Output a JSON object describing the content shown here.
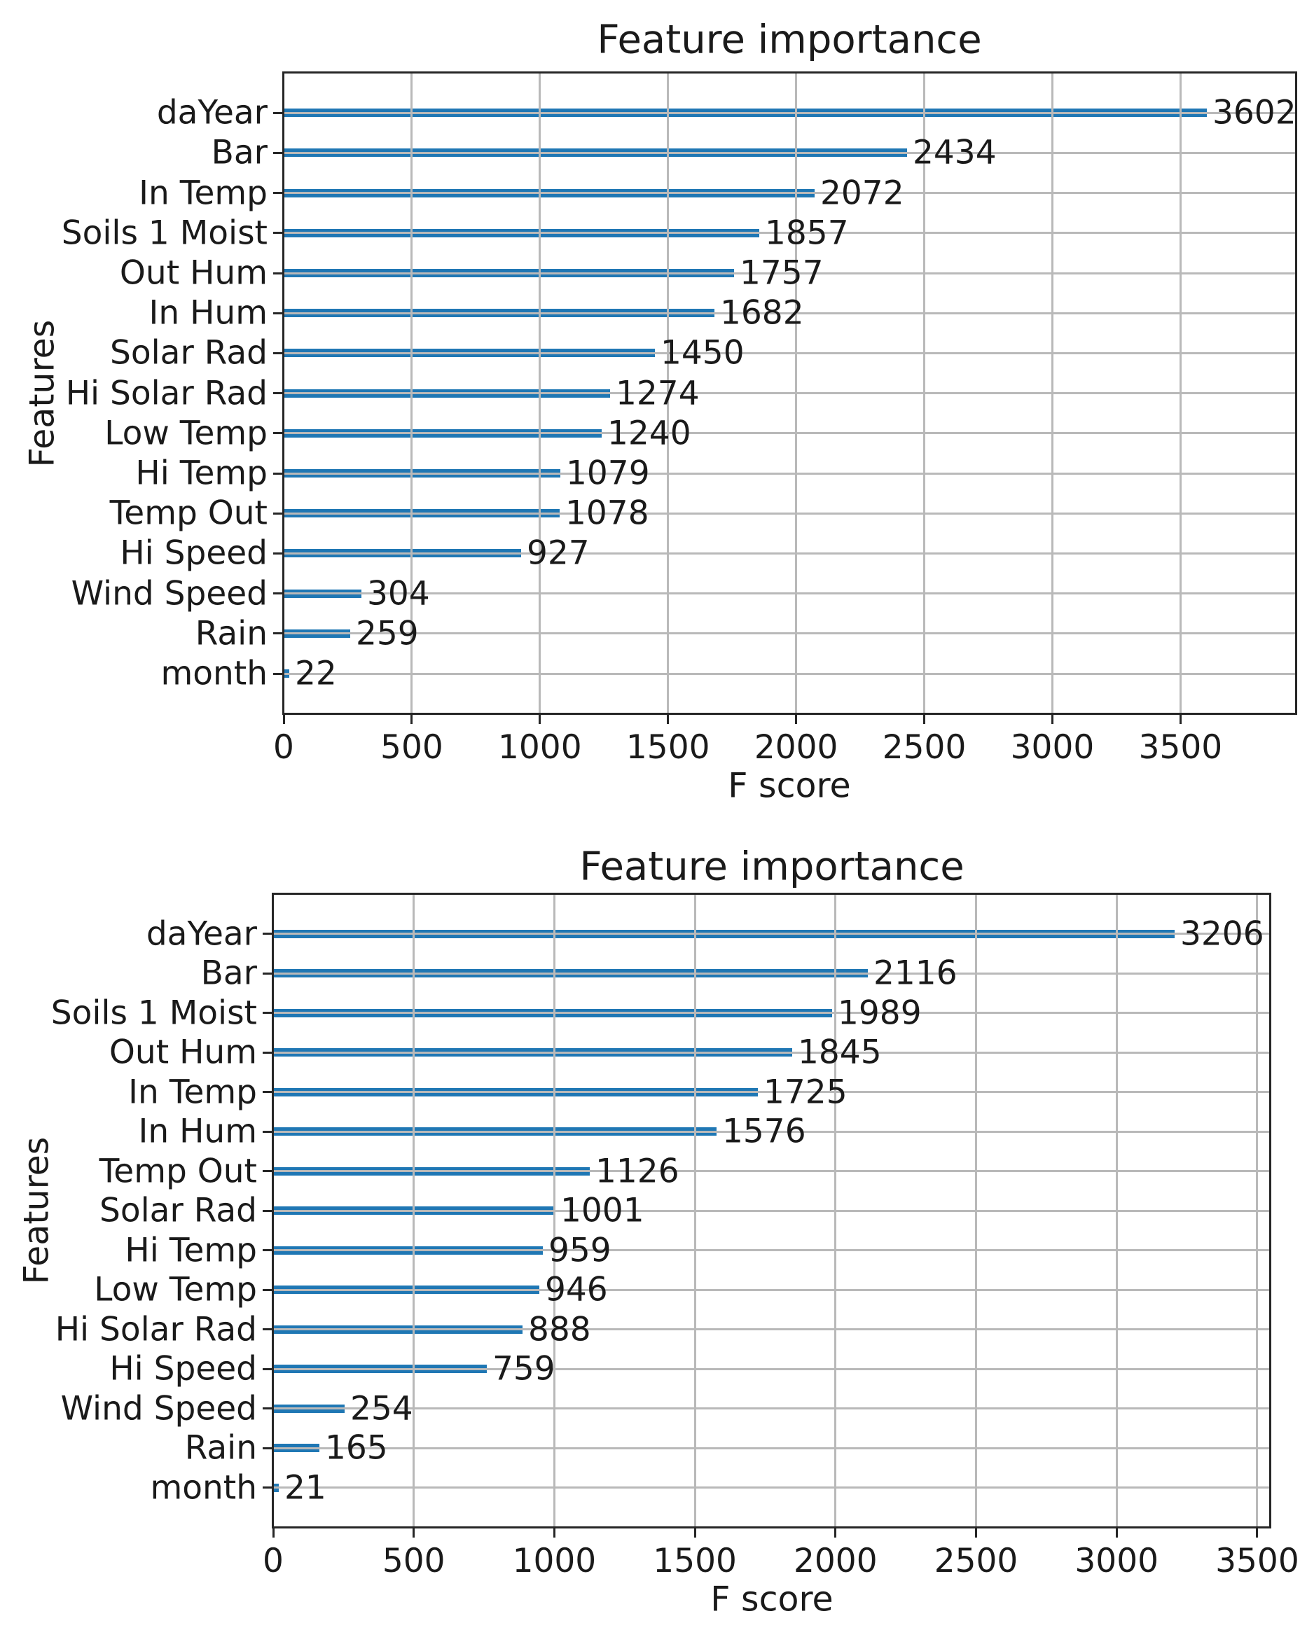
{
  "figure": {
    "background_color": "#ffffff",
    "text_color": "#1a1a1a",
    "spine_color": "#262626",
    "grid_color": "#b9b9b9",
    "bar_color": "#1f77b4"
  },
  "chart_data": [
    {
      "type": "bar",
      "orientation": "horizontal",
      "title": "Feature importance",
      "xlabel": "F score",
      "ylabel": "Features",
      "legend": "none",
      "grid": true,
      "categories": [
        "daYear",
        "Bar",
        "In Temp",
        "Soils 1 Moist",
        "Out Hum",
        "In Hum",
        "Solar Rad",
        "Hi Solar Rad",
        "Low Temp",
        "Hi Temp",
        "Temp Out",
        "Hi Speed",
        "Wind Speed",
        "Rain",
        "month"
      ],
      "values": [
        3602,
        2434,
        2072,
        1857,
        1757,
        1682,
        1450,
        1274,
        1240,
        1079,
        1078,
        927,
        304,
        259,
        22
      ],
      "value_labels": [
        "3602",
        "2434",
        "2072",
        "1857",
        "1757",
        "1682",
        "1450",
        "1274",
        "1240",
        "1079",
        "1078",
        "927",
        "304",
        "259",
        "22"
      ],
      "xticks": [
        0,
        500,
        1000,
        1500,
        2000,
        2500,
        3000,
        3500
      ],
      "xtick_labels": [
        "0",
        "500",
        "1000",
        "1500",
        "2000",
        "2500",
        "3000",
        "3500"
      ],
      "xlim": [
        0,
        3950
      ]
    },
    {
      "type": "bar",
      "orientation": "horizontal",
      "title": "Feature importance",
      "xlabel": "F score",
      "ylabel": "Features",
      "legend": "none",
      "grid": true,
      "categories": [
        "daYear",
        "Bar",
        "Soils 1 Moist",
        "Out Hum",
        "In Temp",
        "In Hum",
        "Temp Out",
        "Solar Rad",
        "Hi Temp",
        "Low Temp",
        "Hi Solar Rad",
        "Hi Speed",
        "Wind Speed",
        "Rain",
        "month"
      ],
      "values": [
        3206,
        2116,
        1989,
        1845,
        1725,
        1576,
        1126,
        1001,
        959,
        946,
        888,
        759,
        254,
        165,
        21
      ],
      "value_labels": [
        "3206",
        "2116",
        "1989",
        "1845",
        "1725",
        "1576",
        "1126",
        "1001",
        "959",
        "946",
        "888",
        "759",
        "254",
        "165",
        "21"
      ],
      "xticks": [
        0,
        500,
        1000,
        1500,
        2000,
        2500,
        3000,
        3500
      ],
      "xtick_labels": [
        "0",
        "500",
        "1000",
        "1500",
        "2000",
        "2500",
        "3000",
        "3500"
      ],
      "xlim": [
        0,
        3545
      ]
    }
  ]
}
